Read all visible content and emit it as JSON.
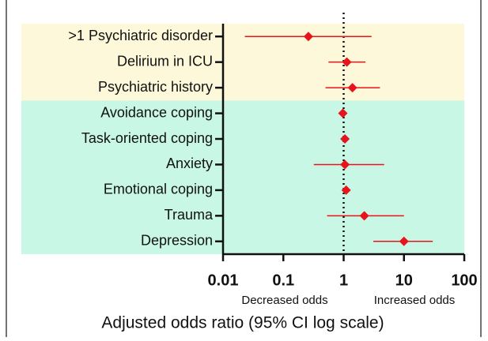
{
  "chart_data": {
    "type": "forest",
    "categories": [
      ">1 Psychiatric disorder",
      "Delirium in ICU",
      "Psychiatric history",
      "Avoidance coping",
      "Task-oriented coping",
      "Anxiety",
      "Emotional coping",
      "Trauma",
      "Depression"
    ],
    "values": [
      0.26,
      1.13,
      1.4,
      0.97,
      1.05,
      1.05,
      1.1,
      2.2,
      10
    ],
    "lower": [
      0.023,
      0.56,
      0.5,
      0.9,
      0.95,
      0.32,
      1.0,
      0.53,
      3.1
    ],
    "upper": [
      2.9,
      2.3,
      4.0,
      1.05,
      1.15,
      4.7,
      1.2,
      10,
      30
    ],
    "color": "#e8141c",
    "bands": [
      {
        "from": 0,
        "to": 2,
        "color": "#fcf8d9"
      },
      {
        "from": 3,
        "to": 8,
        "color": "#c8f7e5"
      }
    ],
    "reference": 1,
    "log_x": true,
    "xlim": [
      0.01,
      100
    ],
    "xticks": [
      0.01,
      0.1,
      1,
      10,
      100
    ],
    "annotations": [
      "Decreased odds",
      "Increased odds"
    ],
    "x_label": "Adjusted odds ratio (95% CI log scale)"
  }
}
